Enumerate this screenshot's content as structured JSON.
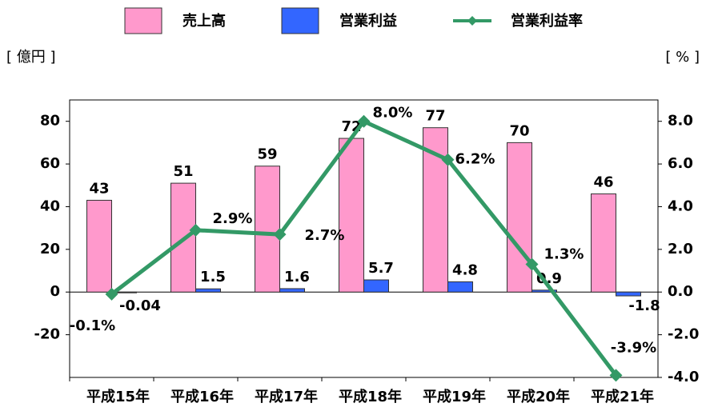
{
  "chart_data": {
    "type": "bar",
    "y_label": "[ 億円 ]",
    "y2_label": "[ % ]",
    "categories": [
      "平成15年",
      "平成16年",
      "平成17年",
      "平成18年",
      "平成19年",
      "平成20年",
      "平成21年"
    ],
    "series": [
      {
        "name": "売上高",
        "type": "bar",
        "color": "#ff99cc",
        "values": [
          43,
          51,
          59,
          72,
          77,
          70,
          46
        ]
      },
      {
        "name": "営業利益",
        "type": "bar",
        "color": "#3366ff",
        "values": [
          -0.04,
          1.5,
          1.6,
          5.7,
          4.8,
          0.9,
          -1.8
        ]
      },
      {
        "name": "営業利益率",
        "type": "line",
        "axis": "y2",
        "color": "#339966",
        "values": [
          -0.1,
          2.9,
          2.7,
          8.0,
          6.2,
          1.3,
          -3.9
        ],
        "value_labels": [
          "-0.1%",
          "2.9%",
          "2.7%",
          "8.0%",
          "6.2%",
          "1.3%",
          "-3.9%"
        ]
      }
    ],
    "ylim": [
      -40,
      90
    ],
    "yticks": [
      -20,
      0,
      20,
      40,
      60,
      80
    ],
    "y2lim": [
      -4,
      9
    ],
    "y2ticks": [
      {
        "value": -4,
        "label": "-4.0"
      },
      {
        "value": -2,
        "label": "-2.0"
      },
      {
        "value": 0,
        "label": "0.0"
      },
      {
        "value": 2,
        "label": "2.0"
      },
      {
        "value": 4,
        "label": "4.0"
      },
      {
        "value": 6,
        "label": "6.0"
      },
      {
        "value": 8,
        "label": "8.0"
      }
    ],
    "legend": "top",
    "grid": false
  }
}
